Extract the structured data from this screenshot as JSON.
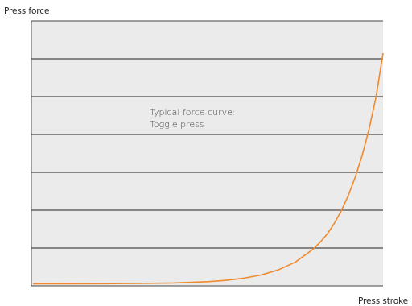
{
  "chart_data": {
    "type": "line",
    "title": "",
    "xlabel": "Press stroke",
    "ylabel": "Press force",
    "annotation": [
      "Typical force curve:",
      "Toggle press"
    ],
    "x_ticks_shown": false,
    "y_ticks_shown": false,
    "grid": "horizontal",
    "gridline_count": 6,
    "xlim": [
      0,
      1
    ],
    "ylim": [
      0,
      1
    ],
    "colors": {
      "line": "#f08a2e",
      "plot_background": "#ebebeb",
      "gridline": "#222222",
      "frame": "#444444"
    },
    "series": [
      {
        "x": [
          0,
          0.1,
          0.2,
          0.3,
          0.4,
          0.5,
          0.55,
          0.6,
          0.65,
          0.7,
          0.75,
          0.8,
          0.82,
          0.84,
          0.86,
          0.88,
          0.9,
          0.92,
          0.94,
          0.96,
          0.98,
          1.0
        ],
        "values": [
          0.0,
          0.0003,
          0.0008,
          0.0018,
          0.004,
          0.0095,
          0.015,
          0.024,
          0.038,
          0.06,
          0.095,
          0.15,
          0.18,
          0.215,
          0.26,
          0.315,
          0.38,
          0.46,
          0.555,
          0.67,
          0.81,
          1.0
        ]
      }
    ]
  }
}
